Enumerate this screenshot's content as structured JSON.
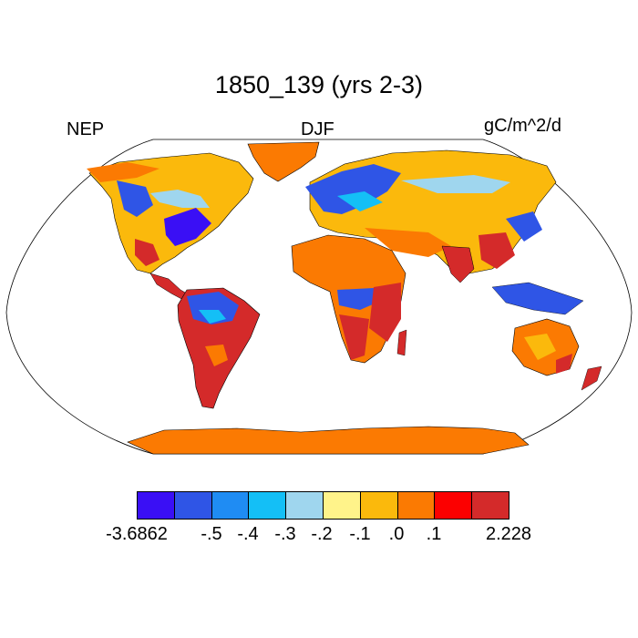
{
  "title": "1850_139 (yrs 2-3)",
  "left_label": "NEP",
  "center_label": "DJF",
  "right_label": "gC/m^2/d",
  "colorbar": {
    "colors": [
      "#3a0ff5",
      "#2f55e6",
      "#1f8cf3",
      "#14bff6",
      "#9fd6ee",
      "#fff38a",
      "#fbb90c",
      "#fb7a02",
      "#fc0000",
      "#d42a2a"
    ],
    "labels": [
      "-3.6862",
      "-.5",
      "-.4",
      "-.3",
      "-.2",
      "-.1",
      ".0",
      ".1",
      "2.228"
    ]
  },
  "map": {
    "projection": "Robinson",
    "ocean_color": "#ffffff",
    "land_outline_color": "#000000"
  }
}
